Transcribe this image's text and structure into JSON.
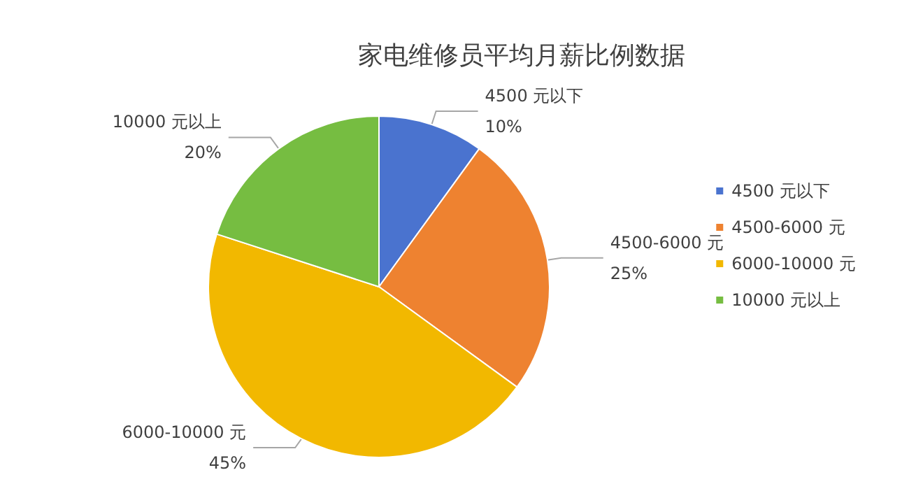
{
  "chart_data": {
    "type": "pie",
    "title": "家电维修员平均月薪比例数据",
    "categories": [
      "4500 元以下",
      "4500-6000 元",
      "6000-10000 元",
      "10000 元以上"
    ],
    "values": [
      10,
      25,
      45,
      20
    ],
    "colors": [
      "#4a73cf",
      "#ee8230",
      "#f2b800",
      "#76bd41"
    ],
    "value_labels": [
      "10%",
      "25%",
      "45%",
      "20%"
    ],
    "legend": "right"
  }
}
